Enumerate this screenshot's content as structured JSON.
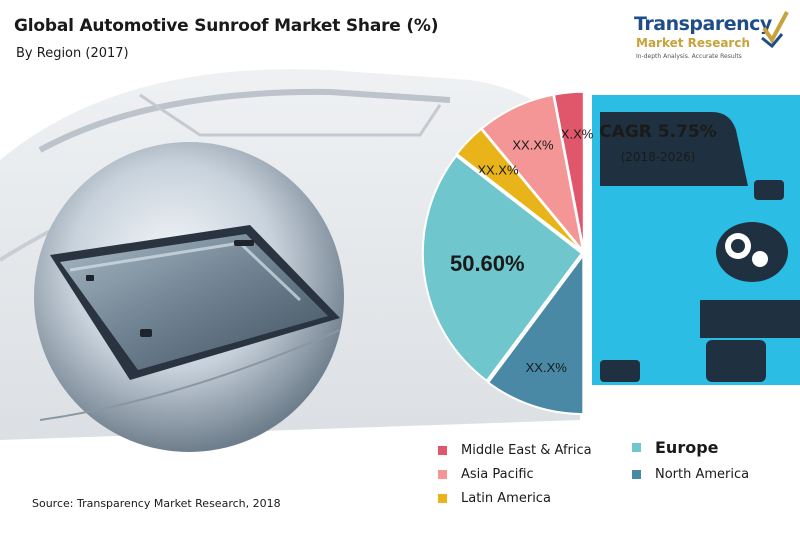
{
  "header": {
    "title": "Global Automotive Sunroof Market Share (%)",
    "subtitle": "By Region (2017)"
  },
  "logo": {
    "name": "Transparency",
    "name_line2": "Market Research",
    "tagline": "In-depth Analysis. Accurate Results"
  },
  "cagr": {
    "label": "CAGR 5.75%",
    "period": "(2018-2026)"
  },
  "source": "Source: Transparency Market Research, 2018",
  "colors": {
    "middle_east_africa": "#e0566b",
    "asia_pacific": "#f49696",
    "latin_america": "#e8b41a",
    "europe": "#6fc6cc",
    "north_america": "#4a89a6",
    "car": "#2bbde3",
    "car_dark": "#0f2230"
  },
  "icons": [
    "sunroof-photo-icon",
    "car-front-icon",
    "logo-checkmark-icon"
  ],
  "chart_data": {
    "type": "pie",
    "title": "Global Automotive Sunroof Market Share (%)",
    "subtitle": "By Region (2017)",
    "layout": "half-pie",
    "slices": [
      {
        "name": "Middle East & Africa",
        "value": 6.0,
        "label": "XX.X%",
        "color": "#e0566b"
      },
      {
        "name": "Asia Pacific",
        "value": 16.0,
        "label": "XX.X%",
        "color": "#f49696"
      },
      {
        "name": "Latin America",
        "value": 7.0,
        "label": "XX.X%",
        "color": "#e8b41a"
      },
      {
        "name": "Europe",
        "value": 50.6,
        "label": "50.60%",
        "color": "#6fc6cc"
      },
      {
        "name": "North America",
        "value": 20.4,
        "label": "XX.X%",
        "color": "#4a89a6"
      }
    ],
    "legend": [
      {
        "name": "Middle East & Africa",
        "color": "#e0566b",
        "emphasis": false
      },
      {
        "name": "Asia Pacific",
        "color": "#f49696",
        "emphasis": false
      },
      {
        "name": "Latin America",
        "color": "#e8b41a",
        "emphasis": false
      },
      {
        "name": "Europe",
        "color": "#6fc6cc",
        "emphasis": true
      },
      {
        "name": "North America",
        "color": "#4a89a6",
        "emphasis": false
      }
    ],
    "legend_position": "bottom-right"
  }
}
